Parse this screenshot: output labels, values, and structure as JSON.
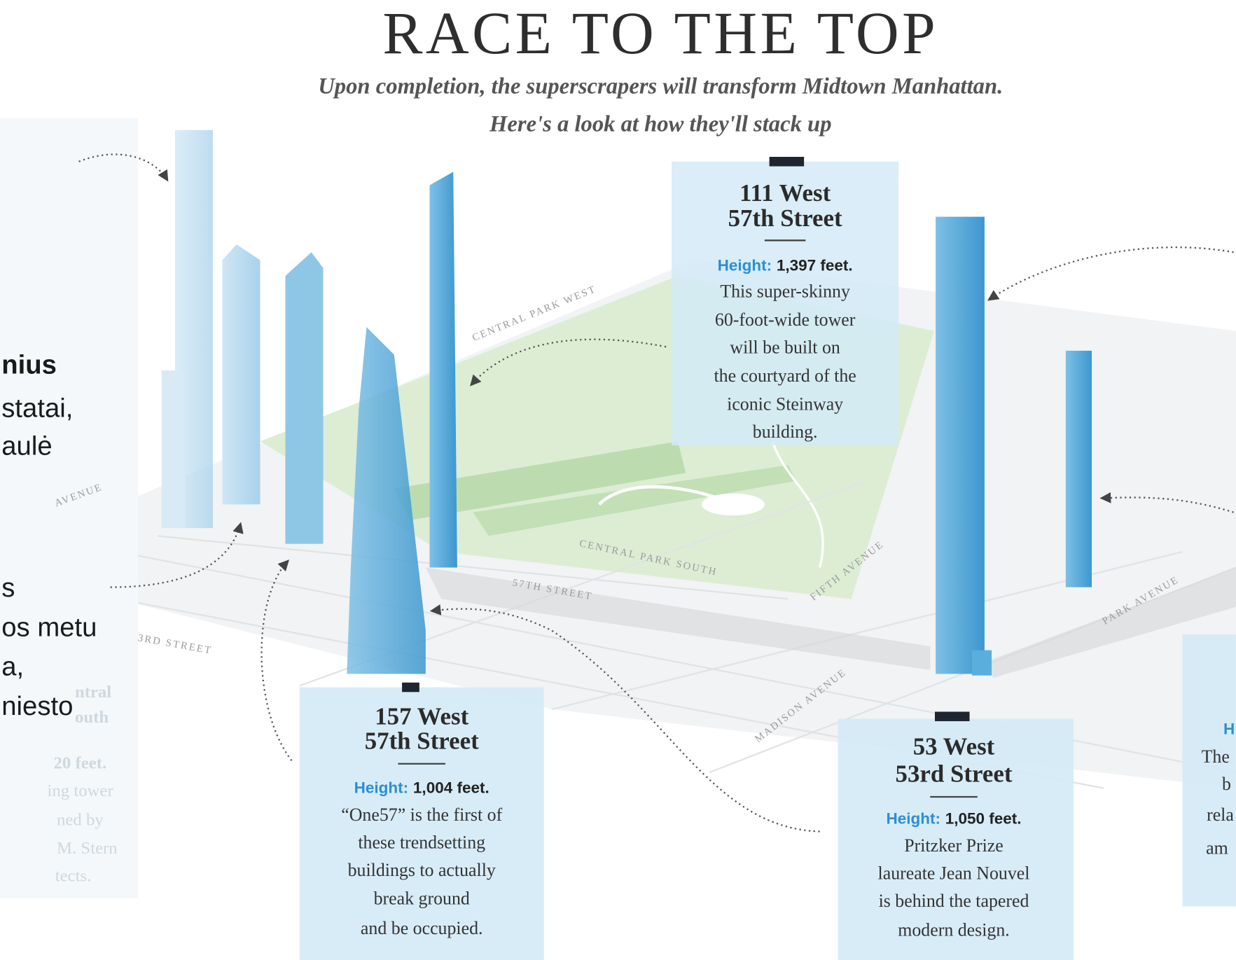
{
  "title": "RACE TO THE TOP",
  "subtitle": [
    "Upon completion, the superscrapers will transform Midtown Manhattan.",
    "Here's a look at how they'll stack up"
  ],
  "streets": [
    "CENTRAL PARK WEST",
    "CENTRAL PARK SOUTH",
    "57TH STREET",
    "FIFTH AVENUE",
    "MADISON AVENUE",
    "PARK AVENUE",
    "3RD STREET",
    "AVENUE"
  ],
  "callouts": [
    {
      "name": [
        "111 West",
        "57th Street"
      ],
      "height_label": "Height:",
      "height": "1,397 feet.",
      "text": [
        "This super-skinny",
        "60-foot-wide tower",
        "will be built on",
        "the courtyard of the",
        "iconic Steinway",
        "building."
      ]
    },
    {
      "name": [
        "157 West",
        "57th Street"
      ],
      "height_label": "Height:",
      "height": "1,004 feet.",
      "text": [
        "“One57” is the first of",
        "these trendsetting",
        "buildings to actually",
        "break ground",
        "and be occupied."
      ]
    },
    {
      "name": [
        "53 West",
        "53rd Street"
      ],
      "height_label": "Height:",
      "height": "1,050 feet.",
      "text": [
        "Pritzker Prize",
        "laureate Jean Nouvel",
        "is behind the tapered",
        "modern design."
      ]
    }
  ],
  "right_partial": [
    "H",
    "The",
    "b",
    "rela",
    "am"
  ],
  "left_partial": [
    "ntral",
    "outh",
    "20 feet.",
    "ing tower",
    "ned by",
    "M. Stern",
    "tects."
  ],
  "overlay_text": [
    "nius",
    "statai,",
    "aulė",
    "s",
    "os metu",
    "a,",
    "niesto"
  ]
}
